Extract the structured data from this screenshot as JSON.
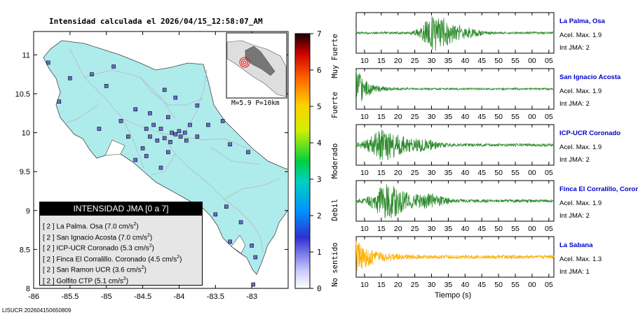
{
  "map": {
    "title": "Intensidad calculada el 2026/04/15_12:58:07_AM",
    "lon_ticks": [
      "-86",
      "-85.5",
      "-85",
      "-84.5",
      "-84",
      "-83.5",
      "-83"
    ],
    "lat_ticks": [
      "11",
      "10.5",
      "10",
      "9.5",
      "9",
      "8.5",
      "8"
    ],
    "lon_range": [
      -86,
      -82.5
    ],
    "lat_range": [
      8,
      11.3
    ],
    "inset_label": "M=5.9 P=10km",
    "colors": {
      "land": "#aeeceb",
      "sea": "#ffffff",
      "roads": "#b9b9c9",
      "station": "#6b6bd6"
    },
    "stations": [
      [
        -84.1,
        10.0
      ],
      [
        -84.05,
        9.98
      ],
      [
        -84.0,
        10.02
      ],
      [
        -83.98,
        9.95
      ],
      [
        -84.2,
        9.93
      ],
      [
        -84.3,
        9.9
      ],
      [
        -84.4,
        9.95
      ],
      [
        -84.45,
        10.05
      ],
      [
        -84.12,
        9.88
      ],
      [
        -83.9,
        9.9
      ],
      [
        -83.92,
        10.0
      ],
      [
        -84.25,
        10.05
      ],
      [
        -84.35,
        10.1
      ],
      [
        -84.15,
        10.2
      ],
      [
        -84.5,
        9.8
      ],
      [
        -83.75,
        9.95
      ],
      [
        -83.6,
        10.1
      ],
      [
        -83.3,
        9.85
      ],
      [
        -83.05,
        9.75
      ],
      [
        -84.6,
        10.3
      ],
      [
        -84.8,
        10.15
      ],
      [
        -85.1,
        10.05
      ],
      [
        -85.0,
        10.6
      ],
      [
        -85.2,
        10.75
      ],
      [
        -85.5,
        10.7
      ],
      [
        -85.65,
        10.4
      ],
      [
        -85.8,
        10.9
      ],
      [
        -84.9,
        10.85
      ],
      [
        -84.2,
        10.55
      ],
      [
        -83.75,
        10.35
      ],
      [
        -84.6,
        9.65
      ],
      [
        -84.25,
        9.55
      ],
      [
        -84.45,
        9.7
      ],
      [
        -83.35,
        9.05
      ],
      [
        -83.5,
        8.95
      ],
      [
        -83.15,
        8.85
      ],
      [
        -83.3,
        8.6
      ],
      [
        -83.0,
        8.55
      ],
      [
        -82.95,
        8.4
      ],
      [
        -82.98,
        8.05
      ],
      [
        -84.05,
        10.45
      ],
      [
        -84.7,
        9.95
      ],
      [
        -83.4,
        10.15
      ],
      [
        -84.4,
        10.25
      ],
      [
        -83.85,
        10.1
      ],
      [
        -84.15,
        9.75
      ]
    ]
  },
  "colorbar": {
    "min": 0,
    "max": 7,
    "ticks": [
      "7",
      "6",
      "5",
      "4",
      "3",
      "2",
      "1",
      "0"
    ],
    "labels": [
      "Muy Fuerte",
      "Fuerte",
      "Moderado",
      "Debil",
      "No sentido"
    ]
  },
  "legend": {
    "title": "INTENSIDAD JMA [0 a 7]",
    "rows": [
      {
        "int": "[ 2 ]",
        "name": "La Palma. Osa",
        "value": "(7.0 cm/s",
        "sup": "2",
        "close": ")"
      },
      {
        "int": "[ 2 ]",
        "name": "San Ignacio Acosta",
        "value": "(7.0 cm/s",
        "sup": "2",
        "close": ")"
      },
      {
        "int": "[ 2 ]",
        "name": "ICP-UCR Coronado",
        "value": "(5.3 cm/s",
        "sup": "2",
        "close": ")"
      },
      {
        "int": "[ 2 ]",
        "name": "Finca El Corralillo. Coronado",
        "value": "(4.5 cm/s",
        "sup": "2",
        "close": ")"
      },
      {
        "int": "[ 2 ]",
        "name": "San Ramon UCR",
        "value": "(3.6 cm/s",
        "sup": "2",
        "close": ")"
      },
      {
        "int": "[ 2 ]",
        "name": "Golfito CTP",
        "value": "(5.1 cm/s",
        "sup": "2",
        "close": ")"
      }
    ]
  },
  "waveforms": {
    "time_ticks": [
      "10",
      "15",
      "20",
      "25",
      "30",
      "35",
      "40",
      "45",
      "50",
      "55",
      "00",
      "05"
    ],
    "axis_label": "Tiempo (s)",
    "stations": [
      {
        "name": "La Palma, Osa",
        "acel": "Acel. Max. 1.9",
        "int": "Int JMA: 2",
        "color": "#2e8b2e"
      },
      {
        "name": "San Ignacio Acosta",
        "acel": "Acel. Max. 1.9",
        "int": "Int JMA: 2",
        "color": "#2e8b2e"
      },
      {
        "name": "ICP-UCR Coronado",
        "acel": "Acel. Max. 1.9",
        "int": "Int JMA: 2",
        "color": "#2e8b2e"
      },
      {
        "name": "Finca El Corralillo, Coronado",
        "acel": "Acel. Max. 1.9",
        "int": "Int JMA: 2",
        "color": "#2e8b2e"
      },
      {
        "name": "La Sabana",
        "acel": "Acel. Max. 1.3",
        "int": "Int JMA: 1",
        "color": "#ffb000"
      }
    ]
  },
  "footer": "LISUCR 202604150650809"
}
